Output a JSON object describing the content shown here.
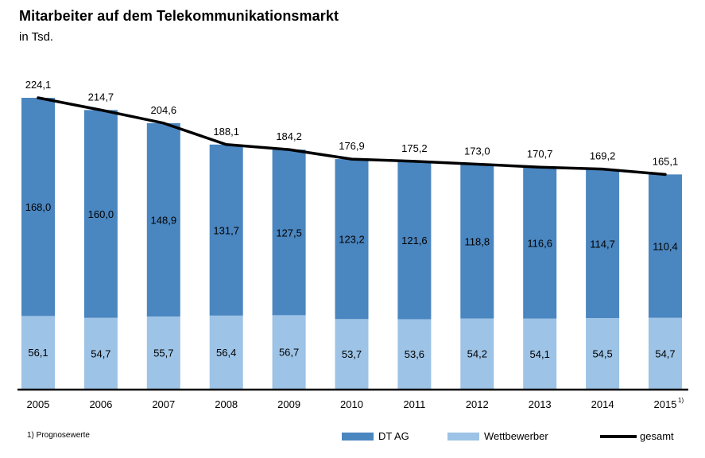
{
  "title": "Mitarbeiter auf dem Telekommunikationsmarkt",
  "subtitle": "in Tsd.",
  "footnote": "1) Prognosewerte",
  "legend": {
    "dt_ag": "DT AG",
    "wettbewerber": "Wettbewerber",
    "gesamt": "gesamt"
  },
  "colors": {
    "dt_ag": "#4a86c0",
    "wettbewerber": "#9dc3e6",
    "gesamt": "#000000"
  },
  "chart_data": {
    "type": "bar",
    "stacked": true,
    "categories": [
      "2005",
      "2006",
      "2007",
      "2008",
      "2009",
      "2010",
      "2011",
      "2012",
      "2013",
      "2014",
      "2015"
    ],
    "category_footnotes": {
      "2015": "1)"
    },
    "series": [
      {
        "name": "Wettbewerber",
        "values": [
          56.1,
          54.7,
          55.7,
          56.4,
          56.7,
          53.7,
          53.6,
          54.2,
          54.1,
          54.5,
          54.7
        ],
        "labels": [
          "56,1",
          "54,7",
          "55,7",
          "56,4",
          "56,7",
          "53,7",
          "53,6",
          "54,2",
          "54,1",
          "54,5",
          "54,7"
        ]
      },
      {
        "name": "DT AG",
        "values": [
          168.0,
          160.0,
          148.9,
          131.7,
          127.5,
          123.2,
          121.6,
          118.8,
          116.6,
          114.7,
          110.4
        ],
        "labels": [
          "168,0",
          "160,0",
          "148,9",
          "131,7",
          "127,5",
          "123,2",
          "121,6",
          "118,8",
          "116,6",
          "114,7",
          "110,4"
        ]
      }
    ],
    "line": {
      "name": "gesamt",
      "values": [
        224.1,
        214.7,
        204.6,
        188.1,
        184.2,
        176.9,
        175.2,
        173.0,
        170.7,
        169.2,
        165.1
      ],
      "labels": [
        "224,1",
        "214,7",
        "204,6",
        "188,1",
        "184,2",
        "176,9",
        "175,2",
        "173,0",
        "170,7",
        "169,2",
        "165,1"
      ]
    },
    "ylim": [
      0,
      224.1
    ],
    "legend_position": "bottom",
    "grid": false
  }
}
